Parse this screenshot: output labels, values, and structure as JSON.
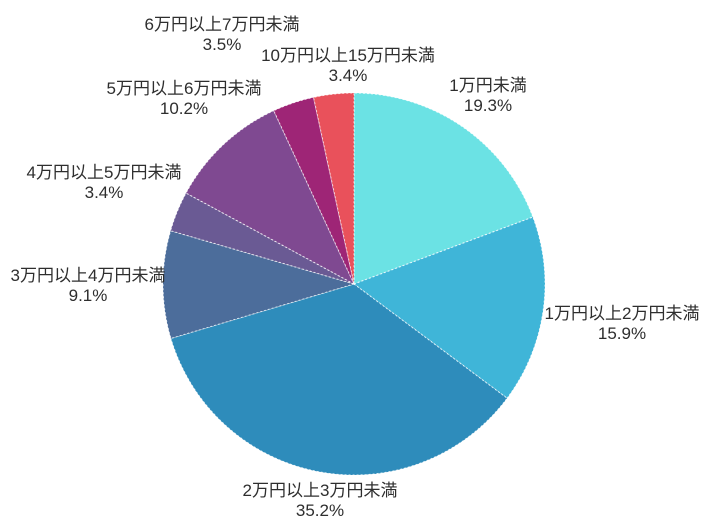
{
  "chart_data": {
    "type": "pie",
    "title": "",
    "start_angle_deg": 90,
    "direction": "clockwise",
    "total_pct": 100.0,
    "background": "#ffffff",
    "text_color": "#2e2e2e",
    "edge_color": "#ffffff",
    "slices": [
      {
        "label": "1万円未満",
        "value": 19.3,
        "pct_label": "19.3%",
        "color": "#6BE2E4"
      },
      {
        "label": "1万円以上2万円未満",
        "value": 15.9,
        "pct_label": "15.9%",
        "color": "#3FB5D8"
      },
      {
        "label": "2万円以上3万円未満",
        "value": 35.2,
        "pct_label": "35.2%",
        "color": "#2E8CBB"
      },
      {
        "label": "3万円以上4万円未満",
        "value": 9.1,
        "pct_label": "9.1%",
        "color": "#4C6D9B"
      },
      {
        "label": "4万円以上5万円未満",
        "value": 3.4,
        "pct_label": "3.4%",
        "color": "#6A5A94"
      },
      {
        "label": "5万円以上6万円未満",
        "value": 10.2,
        "pct_label": "10.2%",
        "color": "#7F4991"
      },
      {
        "label": "6万円以上7万円未満",
        "value": 3.5,
        "pct_label": "3.5%",
        "color": "#9E2576"
      },
      {
        "label": "10万円以上15万円未満",
        "value": 3.4,
        "pct_label": "3.4%",
        "color": "#E9515B"
      }
    ]
  }
}
